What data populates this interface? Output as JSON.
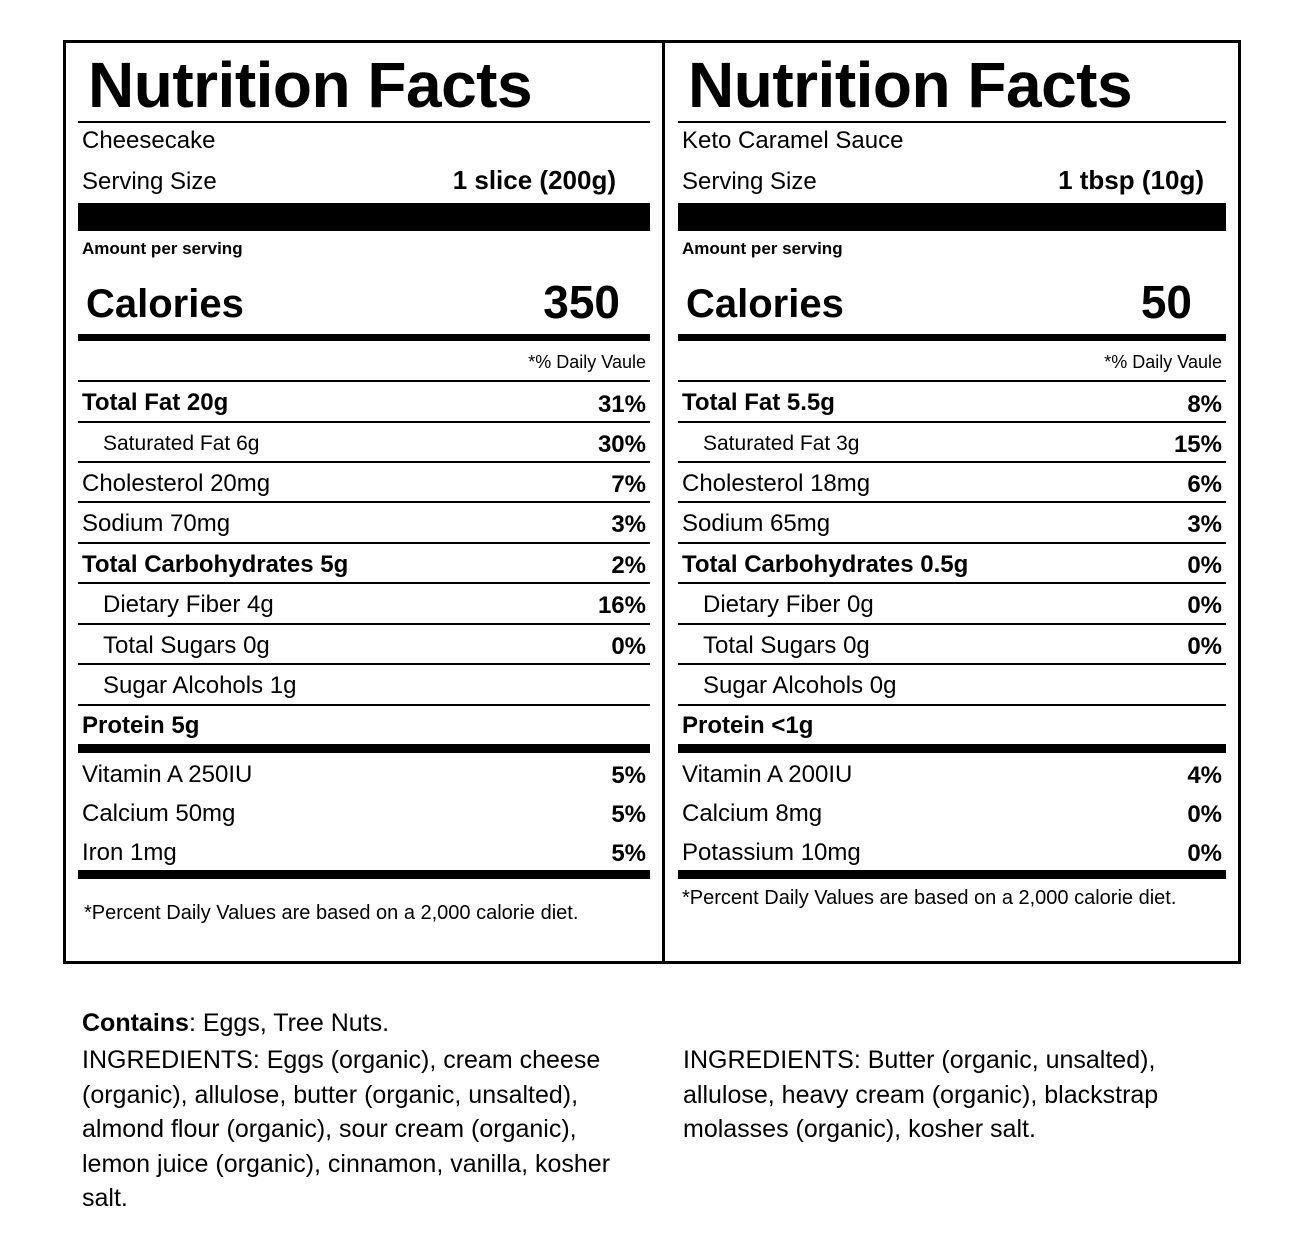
{
  "labels": [
    {
      "title": "Nutrition Facts",
      "product": "Cheesecake",
      "serving_label": "Serving Size",
      "serving_value": "1 slice (200g)",
      "amount_per_serving": "Amount per serving",
      "calories_label": "Calories",
      "calories_value": "350",
      "daily_value_header": "*% Daily Vaule",
      "rows": [
        {
          "label": "Total Fat 20g",
          "dv": "31%"
        },
        {
          "label": "Saturated Fat 6g",
          "dv": "30%"
        },
        {
          "label": "Cholesterol 20mg",
          "dv": "7%"
        },
        {
          "label": "Sodium 70mg",
          "dv": "3%"
        },
        {
          "label": "Total Carbohydrates 5g",
          "dv": "2%"
        },
        {
          "label": "Dietary Fiber 4g",
          "dv": "16%"
        },
        {
          "label": "Total Sugars 0g",
          "dv": "0%"
        },
        {
          "label": "Sugar Alcohols 1g",
          "dv": ""
        },
        {
          "label": "Protein 5g",
          "dv": ""
        }
      ],
      "vitamins": [
        {
          "label": "Vitamin A 250IU",
          "dv": "5%"
        },
        {
          "label": "Calcium 50mg",
          "dv": "5%"
        },
        {
          "label": "Iron 1mg",
          "dv": "5%"
        }
      ],
      "footnote": "*Percent Daily Values are based on a 2,000 calorie diet."
    },
    {
      "title": "Nutrition Facts",
      "product": "Keto Caramel Sauce",
      "serving_label": "Serving Size",
      "serving_value": "1 tbsp (10g)",
      "amount_per_serving": "Amount per serving",
      "calories_label": "Calories",
      "calories_value": "50",
      "daily_value_header": "*% Daily Vaule",
      "rows": [
        {
          "label": "Total Fat 5.5g",
          "dv": "8%"
        },
        {
          "label": "Saturated Fat 3g",
          "dv": "15%"
        },
        {
          "label": "Cholesterol 18mg",
          "dv": "6%"
        },
        {
          "label": "Sodium 65mg",
          "dv": "3%"
        },
        {
          "label": "Total Carbohydrates 0.5g",
          "dv": "0%"
        },
        {
          "label": "Dietary Fiber 0g",
          "dv": "0%"
        },
        {
          "label": "Total Sugars 0g",
          "dv": "0%"
        },
        {
          "label": "Sugar Alcohols 0g",
          "dv": ""
        },
        {
          "label": "Protein <1g",
          "dv": ""
        }
      ],
      "vitamins": [
        {
          "label": "Vitamin A 200IU",
          "dv": "4%"
        },
        {
          "label": "Calcium 8mg",
          "dv": "0%"
        },
        {
          "label": "Potassium 10mg",
          "dv": "0%"
        }
      ],
      "footnote": "*Percent Daily Values are based on a 2,000 calorie diet."
    }
  ],
  "contains": {
    "label": "Contains",
    "value": ": Eggs, Tree Nuts."
  },
  "ingredients": [
    "INGREDIENTS: Eggs (organic), cream cheese (organic), allulose, butter (organic, unsalted), almond flour (organic), sour cream (organic), lemon juice (organic), cinnamon, vanilla, kosher salt.",
    "INGREDIENTS: Butter (organic, unsalted), allulose, heavy cream (organic), blackstrap molasses (organic), kosher salt."
  ]
}
